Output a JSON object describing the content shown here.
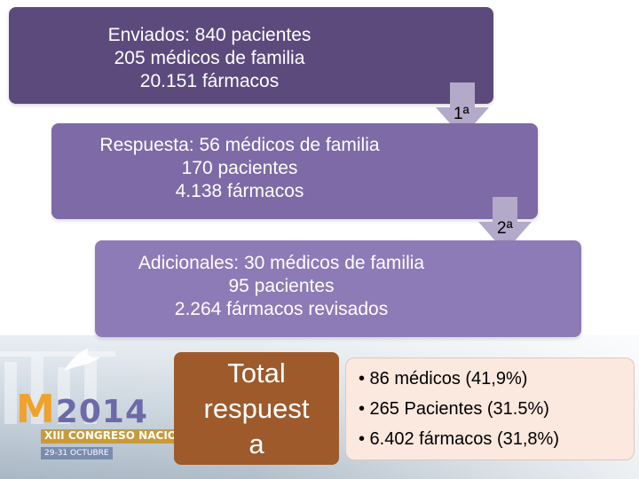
{
  "steps": [
    {
      "lines": [
        "Enviados:  840 pacientes",
        "205 médicos de familia",
        "20.151 fármacos"
      ]
    },
    {
      "lines": [
        "Respuesta: 56 médicos de familia",
        "170 pacientes",
        "4.138 fármacos"
      ]
    },
    {
      "lines": [
        "Adicionales:  30 médicos de familia",
        "95 pacientes",
        "2.264 fármacos revisados"
      ]
    }
  ],
  "arrows": [
    "1ª",
    "2ª"
  ],
  "total": {
    "lines": [
      "Total",
      "respuest",
      "a"
    ]
  },
  "summary": {
    "items": [
      "• 86 médicos (41,9%)",
      "• 265 Pacientes (31.5%)",
      "• 6.402 fármacos (31,8%)"
    ]
  },
  "logo": {
    "main_letter": "M",
    "main_text": "2014",
    "line2": "XIII CONGRESO NACIONAL de",
    "line3": "29-31 OCTUBRE"
  },
  "colors": {
    "step1": "#5c4a7d",
    "step2": "#7d6aa6",
    "step3": "#8c7bb6",
    "arrow": "#b3a9c9",
    "total": "#9e5a2b",
    "summary_bg": "#fbe8de"
  }
}
